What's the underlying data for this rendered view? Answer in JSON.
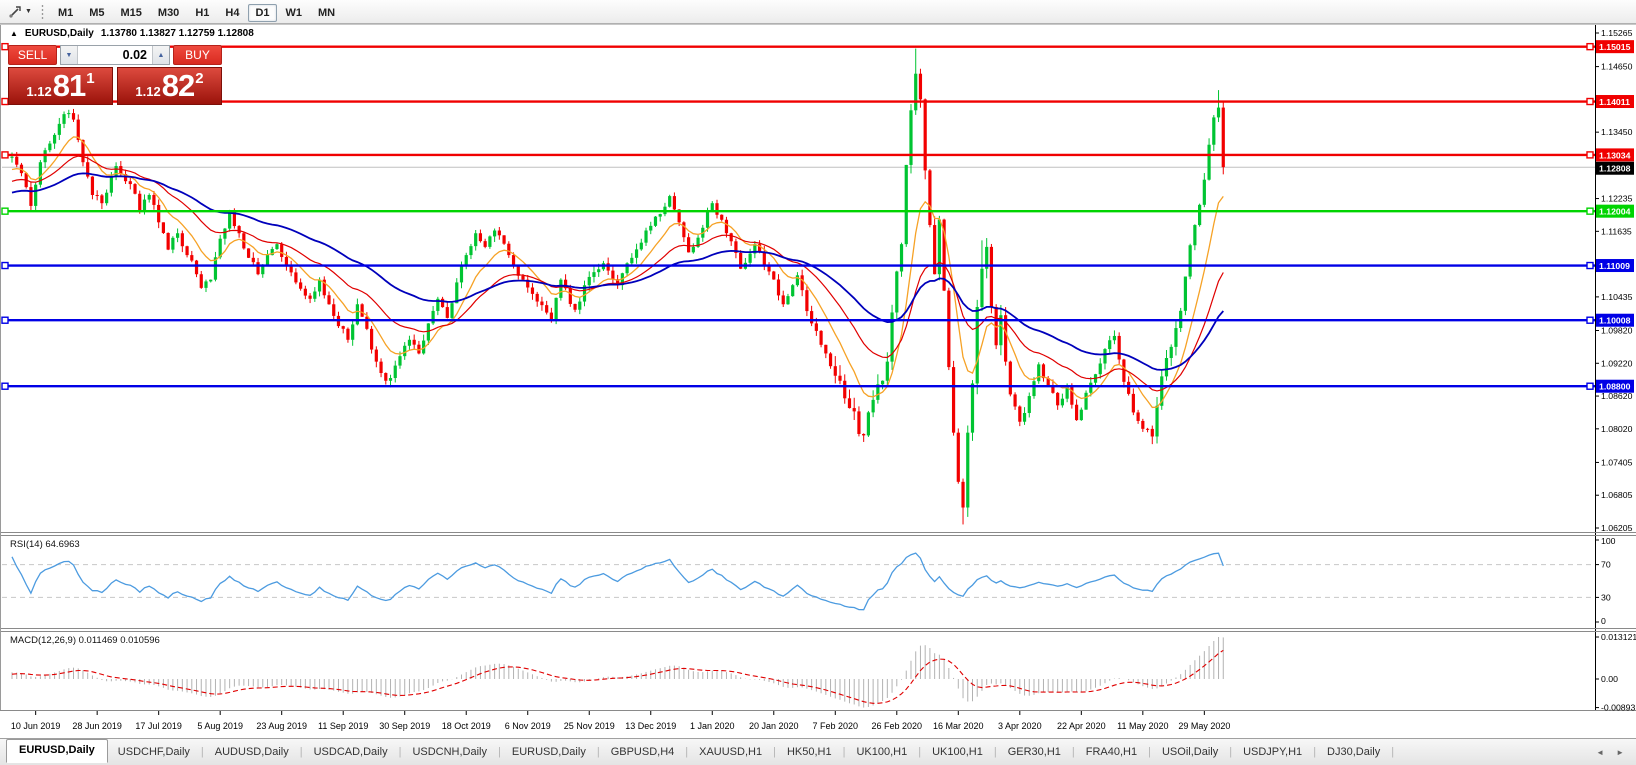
{
  "toolbar": {
    "cursor_tool": "crosshair-cursor-tool",
    "timeframes": [
      "M1",
      "M5",
      "M15",
      "M30",
      "H1",
      "H4",
      "D1",
      "W1",
      "MN"
    ],
    "active_timeframe": "D1"
  },
  "chart_header": {
    "collapse_icon": "▲",
    "symbol": "EURUSD,Daily",
    "ohlc_text": "1.13780 1.13827 1.12759 1.12808"
  },
  "trade_panel": {
    "sell_label": "SELL",
    "buy_label": "BUY",
    "volume": "0.02",
    "spin_down_icon": "▼",
    "spin_up_icon": "▲",
    "sell_price": {
      "prefix": "1.12",
      "big": "81",
      "sup": "1"
    },
    "buy_price": {
      "prefix": "1.12",
      "big": "82",
      "sup": "2"
    }
  },
  "price_axis": {
    "plain_ticks": [
      "1.15265",
      "1.14650",
      "1.13450",
      "1.12235",
      "1.11635",
      "1.10435",
      "1.09820",
      "1.09220",
      "1.08620",
      "1.08020",
      "1.07405",
      "1.06805",
      "1.06205"
    ],
    "top_price": 1.15265,
    "bottom_price": 1.06205
  },
  "hlines": [
    {
      "price": 1.15015,
      "label": "1.15015",
      "color": "#f00000"
    },
    {
      "price": 1.14011,
      "label": "1.14011",
      "color": "#f00000"
    },
    {
      "price": 1.13034,
      "label": "1.13034",
      "color": "#f00000"
    },
    {
      "price": 1.12004,
      "label": "1.12004",
      "color": "#00d400"
    },
    {
      "price": 1.11009,
      "label": "1.11009",
      "color": "#0000e6"
    },
    {
      "price": 1.10008,
      "label": "1.10008",
      "color": "#0000e6"
    },
    {
      "price": 1.088,
      "label": "1.08800",
      "color": "#0000e6"
    }
  ],
  "current_price": {
    "value": 1.12808,
    "label": "1.12808",
    "line_color": "#c0c0c0",
    "label_bg": "#000000"
  },
  "rsi": {
    "label": "RSI(14) 64.6963",
    "period": 14,
    "color": "#4c9be0",
    "level_color": "#c8c8c8",
    "axis_labels": [
      {
        "text": "100",
        "v": 100
      },
      {
        "text": "70",
        "v": 70
      },
      {
        "text": "30",
        "v": 30
      },
      {
        "text": "0",
        "v": 0
      }
    ],
    "levels": [
      70,
      30
    ]
  },
  "macd": {
    "label": "MACD(12,26,9) 0.011469 0.010596",
    "fast": 12,
    "slow": 26,
    "signal": 9,
    "histogram_color": "#b2b2b2",
    "signal_color": "#e00000",
    "axis_labels": [
      {
        "text": "0.013121",
        "v": 0.013121
      },
      {
        "text": "0.00",
        "v": 0
      },
      {
        "text": "-0.00893",
        "v": -0.00893
      }
    ],
    "max": 0.013121,
    "min": -0.00893
  },
  "x_axis": {
    "dates": [
      "10 Jun 2019",
      "28 Jun 2019",
      "17 Jul 2019",
      "5 Aug 2019",
      "23 Aug 2019",
      "11 Sep 2019",
      "30 Sep 2019",
      "18 Oct 2019",
      "6 Nov 2019",
      "25 Nov 2019",
      "13 Dec 2019",
      "1 Jan 2020",
      "20 Jan 2020",
      "7 Feb 2020",
      "26 Feb 2020",
      "16 Mar 2020",
      "3 Apr 2020",
      "22 Apr 2020",
      "11 May 2020",
      "29 May 2020"
    ]
  },
  "tabs": {
    "items": [
      "EURUSD,Daily",
      "USDCHF,Daily",
      "AUDUSD,Daily",
      "USDCAD,Daily",
      "USDCNH,Daily",
      "EURUSD,Daily",
      "GBPUSD,H4",
      "XAUUSD,H1",
      "HK50,H1",
      "UK100,H1",
      "UK100,H1",
      "GER30,H1",
      "FRA40,H1",
      "USOil,Daily",
      "USDJPY,H1",
      "DJ30,Daily"
    ],
    "active_index": 0,
    "nav_left": "◄",
    "nav_right": "►"
  },
  "chart_data": {
    "type": "candlestick",
    "symbol": "EURUSD",
    "timeframe": "Daily",
    "display_open": 1.1378,
    "display_high": 1.13827,
    "display_low": 1.12759,
    "display_close": 1.12808,
    "price_range_visible": [
      1.06205,
      1.15265
    ],
    "candle_up_color": "#00c432",
    "candle_down_color": "#f20000",
    "ma_lines": [
      {
        "name": "fast-ma",
        "period": 10,
        "color": "#f6a226",
        "width": 1.3
      },
      {
        "name": "mid-ma",
        "period": 25,
        "color": "#e00000",
        "width": 1.2
      },
      {
        "name": "slow-ma",
        "period": 52,
        "color": "#0000bb",
        "width": 1.8
      }
    ],
    "price_anchors": [
      [
        -50,
        1.117,
        null,
        null
      ],
      [
        -35,
        1.125,
        null,
        null
      ],
      [
        -20,
        1.121,
        null,
        null
      ],
      [
        -8,
        1.1255,
        null,
        null
      ],
      [
        0,
        1.13,
        null,
        null
      ],
      [
        2,
        1.127,
        null,
        null
      ],
      [
        4,
        1.121,
        null,
        null
      ],
      [
        6,
        1.129,
        null,
        null
      ],
      [
        9,
        1.134,
        null,
        null
      ],
      [
        11,
        1.1378,
        null,
        null
      ],
      [
        13,
        1.1368,
        null,
        null
      ],
      [
        15,
        1.129,
        null,
        null
      ],
      [
        17,
        1.123,
        null,
        null
      ],
      [
        19,
        1.1215,
        null,
        null
      ],
      [
        22,
        1.1283,
        null,
        null
      ],
      [
        25,
        1.125,
        null,
        null
      ],
      [
        27,
        1.12,
        null,
        null
      ],
      [
        29,
        1.123,
        null,
        null
      ],
      [
        31,
        1.118,
        null,
        null
      ],
      [
        33,
        1.113,
        null,
        null
      ],
      [
        35,
        1.116,
        null,
        null
      ],
      [
        38,
        1.111,
        null,
        null
      ],
      [
        40,
        1.106,
        null,
        null
      ],
      [
        42,
        1.1075,
        null,
        null
      ],
      [
        44,
        1.115,
        null,
        null
      ],
      [
        46,
        1.12,
        null,
        null
      ],
      [
        48,
        1.116,
        null,
        null
      ],
      [
        50,
        1.1115,
        null,
        null
      ],
      [
        52,
        1.1085,
        null,
        null
      ],
      [
        54,
        1.112,
        null,
        null
      ],
      [
        56,
        1.114,
        null,
        null
      ],
      [
        58,
        1.11,
        null,
        null
      ],
      [
        60,
        1.107,
        null,
        null
      ],
      [
        63,
        1.104,
        null,
        null
      ],
      [
        65,
        1.1075,
        null,
        null
      ],
      [
        67,
        1.103,
        null,
        null
      ],
      [
        69,
        1.099,
        null,
        null
      ],
      [
        71,
        1.0965,
        null,
        null
      ],
      [
        73,
        1.103,
        null,
        null
      ],
      [
        75,
        1.0985,
        null,
        null
      ],
      [
        77,
        1.0925,
        null,
        null
      ],
      [
        79,
        1.089,
        null,
        null
      ],
      [
        80,
        1.0895,
        null,
        1.0878
      ],
      [
        82,
        1.0935,
        null,
        null
      ],
      [
        84,
        1.0965,
        null,
        null
      ],
      [
        86,
        1.094,
        null,
        null
      ],
      [
        88,
        1.0995,
        null,
        null
      ],
      [
        90,
        1.104,
        null,
        null
      ],
      [
        92,
        1.1005,
        null,
        null
      ],
      [
        94,
        1.107,
        null,
        null
      ],
      [
        96,
        1.112,
        null,
        null
      ],
      [
        98,
        1.116,
        null,
        null
      ],
      [
        100,
        1.1135,
        null,
        null
      ],
      [
        102,
        1.1165,
        null,
        null
      ],
      [
        105,
        1.112,
        null,
        null
      ],
      [
        108,
        1.1075,
        null,
        null
      ],
      [
        111,
        1.1035,
        null,
        null
      ],
      [
        114,
        1.1,
        null,
        null
      ],
      [
        116,
        1.1075,
        null,
        null
      ],
      [
        119,
        1.102,
        null,
        null
      ],
      [
        122,
        1.108,
        null,
        null
      ],
      [
        125,
        1.1105,
        null,
        null
      ],
      [
        128,
        1.1065,
        null,
        null
      ],
      [
        131,
        1.1115,
        null,
        null
      ],
      [
        134,
        1.1165,
        null,
        null
      ],
      [
        137,
        1.1195,
        null,
        null
      ],
      [
        139,
        1.1228,
        null,
        null
      ],
      [
        141,
        1.118,
        null,
        null
      ],
      [
        143,
        1.1125,
        null,
        null
      ],
      [
        146,
        1.117,
        null,
        null
      ],
      [
        148,
        1.1215,
        null,
        null
      ],
      [
        151,
        1.116,
        null,
        null
      ],
      [
        154,
        1.1095,
        null,
        null
      ],
      [
        157,
        1.114,
        null,
        null
      ],
      [
        160,
        1.109,
        null,
        null
      ],
      [
        163,
        1.103,
        null,
        null
      ],
      [
        166,
        1.1083,
        null,
        null
      ],
      [
        169,
        1.0995,
        null,
        null
      ],
      [
        172,
        1.094,
        null,
        null
      ],
      [
        175,
        1.089,
        null,
        null
      ],
      [
        177,
        1.084,
        null,
        null
      ],
      [
        180,
        1.079,
        null,
        1.0778
      ],
      [
        182,
        1.0855,
        null,
        null
      ],
      [
        184,
        1.089,
        null,
        null
      ],
      [
        185,
        1.0925,
        null,
        null
      ],
      [
        186,
        1.1015,
        null,
        null
      ],
      [
        187,
        1.109,
        null,
        null
      ],
      [
        188,
        1.114,
        null,
        null
      ],
      [
        189,
        1.1285,
        null,
        null
      ],
      [
        190,
        1.1385,
        null,
        null
      ],
      [
        191,
        1.1452,
        1.1498,
        null
      ],
      [
        192,
        1.1405,
        null,
        null
      ],
      [
        193,
        1.1275,
        null,
        null
      ],
      [
        194,
        1.1175,
        null,
        null
      ],
      [
        195,
        1.1085,
        null,
        null
      ],
      [
        196,
        1.1185,
        null,
        null
      ],
      [
        197,
        1.1055,
        null,
        null
      ],
      [
        198,
        1.0915,
        null,
        null
      ],
      [
        199,
        1.0795,
        null,
        null
      ],
      [
        200,
        1.0705,
        null,
        null
      ],
      [
        201,
        1.0658,
        null,
        1.0627
      ],
      [
        202,
        1.0795,
        null,
        null
      ],
      [
        203,
        1.0885,
        null,
        null
      ],
      [
        204,
        1.1025,
        null,
        null
      ],
      [
        205,
        1.1095,
        1.1147,
        null
      ],
      [
        206,
        1.1135,
        null,
        null
      ],
      [
        207,
        1.1025,
        1.109,
        null
      ],
      [
        208,
        1.0955,
        null,
        null
      ],
      [
        209,
        1.101,
        null,
        null
      ],
      [
        210,
        1.0925,
        null,
        null
      ],
      [
        211,
        1.0865,
        null,
        null
      ],
      [
        213,
        1.0815,
        null,
        null
      ],
      [
        215,
        1.0862,
        null,
        null
      ],
      [
        217,
        1.092,
        null,
        null
      ],
      [
        219,
        1.0882,
        null,
        null
      ],
      [
        221,
        1.0845,
        null,
        null
      ],
      [
        223,
        1.088,
        null,
        null
      ],
      [
        225,
        1.0818,
        null,
        null
      ],
      [
        227,
        1.0868,
        null,
        null
      ],
      [
        229,
        1.0902,
        null,
        null
      ],
      [
        231,
        1.0948,
        null,
        null
      ],
      [
        233,
        1.0972,
        null,
        null
      ],
      [
        235,
        1.0888,
        null,
        null
      ],
      [
        237,
        1.0832,
        null,
        null
      ],
      [
        239,
        1.0802,
        null,
        null
      ],
      [
        241,
        1.0788,
        null,
        1.0774
      ],
      [
        243,
        1.0898,
        null,
        null
      ],
      [
        245,
        1.0952,
        null,
        null
      ],
      [
        247,
        1.1018,
        null,
        null
      ],
      [
        249,
        1.1138,
        null,
        null
      ],
      [
        250,
        1.1175,
        null,
        null
      ],
      [
        251,
        1.1212,
        null,
        null
      ],
      [
        252,
        1.1258,
        null,
        null
      ],
      [
        253,
        1.1322,
        null,
        null
      ],
      [
        254,
        1.1372,
        null,
        null
      ],
      [
        255,
        1.139,
        1.1422,
        null
      ],
      [
        256,
        1.1281,
        1.14,
        1.1276
      ]
    ]
  }
}
